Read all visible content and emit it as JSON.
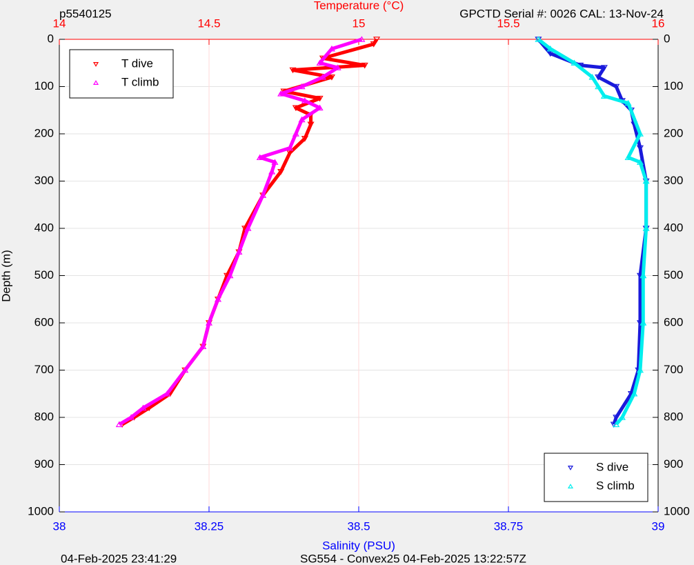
{
  "chart_data": {
    "type": "scatter",
    "title_left": "p5540125",
    "title_right": "GPCTD Serial #: 0026 CAL: 13-Nov-24",
    "x2label": "Temperature (°C)",
    "xlabel": "Salinity (PSU)",
    "ylabel": "Depth (m)",
    "footer_left": "04-Feb-2025 23:41:29",
    "footer_center": "SG554 - Convex25 04-Feb-2025 13:22:57Z",
    "xlim": [
      38,
      39
    ],
    "xticks": [
      38,
      38.25,
      38.5,
      38.75,
      39
    ],
    "x_axis_color": "#0000ff",
    "x2lim": [
      14,
      16
    ],
    "x2ticks": [
      14,
      14.5,
      15,
      15.5,
      16
    ],
    "x2_axis_color": "#ff0000",
    "ylim": [
      1000,
      0
    ],
    "yticks": [
      0,
      100,
      200,
      300,
      400,
      500,
      600,
      700,
      800,
      900,
      1000
    ],
    "grid": true,
    "x2_legend": "upper left",
    "legend": "lower right",
    "series": [
      {
        "name": "T dive",
        "color": "#ff0000",
        "marker": "v",
        "axis": "x2",
        "x": [
          15.06,
          15.05,
          14.88,
          15.02,
          14.78,
          14.91,
          14.75,
          14.87,
          14.79,
          14.84,
          14.84,
          14.82,
          14.77,
          14.74,
          14.68,
          14.62,
          14.6,
          14.56,
          14.53,
          14.5,
          14.48,
          14.42,
          14.37,
          14.3,
          14.25,
          14.21
        ],
        "y": [
          0,
          10,
          40,
          55,
          65,
          80,
          110,
          125,
          145,
          160,
          180,
          210,
          240,
          280,
          330,
          400,
          450,
          500,
          550,
          600,
          650,
          700,
          750,
          780,
          800,
          815
        ]
      },
      {
        "name": "T climb",
        "color": "#ff00ff",
        "marker": "^",
        "axis": "x2",
        "x": [
          15.01,
          14.91,
          14.87,
          14.93,
          14.88,
          14.81,
          14.74,
          14.82,
          14.87,
          14.81,
          14.79,
          14.77,
          14.67,
          14.72,
          14.71,
          14.68,
          14.63,
          14.6,
          14.57,
          14.53,
          14.5,
          14.48,
          14.42,
          14.36,
          14.28,
          14.24,
          14.2
        ],
        "y": [
          0,
          20,
          50,
          60,
          80,
          100,
          115,
          130,
          145,
          170,
          200,
          230,
          250,
          260,
          280,
          330,
          400,
          450,
          500,
          550,
          600,
          650,
          700,
          750,
          780,
          800,
          815
        ]
      },
      {
        "name": "S dive",
        "color": "#1a1adb",
        "marker": "v",
        "axis": "x",
        "x": [
          38.8,
          38.82,
          38.87,
          38.91,
          38.9,
          38.93,
          38.94,
          38.955,
          38.96,
          38.97,
          38.98,
          38.98,
          38.97,
          38.97,
          38.967,
          38.955,
          38.93,
          38.926
        ],
        "y": [
          0,
          30,
          55,
          60,
          80,
          100,
          130,
          150,
          180,
          230,
          300,
          400,
          500,
          600,
          700,
          750,
          800,
          815
        ]
      },
      {
        "name": "S climb",
        "color": "#00eeee",
        "marker": "^",
        "axis": "x",
        "x": [
          38.8,
          38.82,
          38.86,
          38.89,
          38.9,
          38.91,
          38.95,
          38.97,
          38.95,
          38.97,
          38.98,
          38.98,
          38.975,
          38.975,
          38.97,
          38.96,
          38.94,
          38.93
        ],
        "y": [
          0,
          20,
          50,
          80,
          100,
          120,
          135,
          200,
          250,
          260,
          300,
          400,
          500,
          600,
          700,
          750,
          800,
          815
        ]
      }
    ]
  }
}
